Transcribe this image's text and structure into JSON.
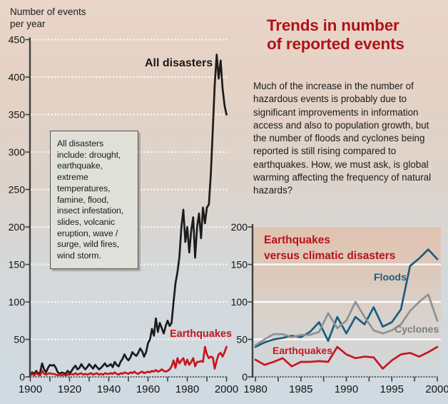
{
  "left_axis_title": {
    "line1": "Number of events",
    "line2": "per year"
  },
  "title": {
    "line1": "Trends in number",
    "line2": "of reported events",
    "color": "#b01218"
  },
  "paragraph": {
    "text": "Much of the increase in the number of hazardous events is probably due to significant improvements in information access and also to population growth, but the number of floods and cyclones being reported is still rising compared to earthquakes. How, we must ask, is global warming affecting the frequency of natural hazards?"
  },
  "note_box": {
    "text": "All disasters include: drought, earthquake, extreme temperatures, famine, flood, insect infestation, slides, volcanic eruption, wave / surge, wild fires, wind storm."
  },
  "appearance": {
    "background_top": "#e9d6c8",
    "background_bottom": "#cfdae2",
    "gridline_color": "#ffffff",
    "axis_color": "#3f3f3f",
    "panel_gradient": [
      "#e1c3b1",
      "#ddc8ba",
      "#d9d2cb",
      "#d0d8dc"
    ]
  },
  "chart_data": [
    {
      "type": "line",
      "name": "all-disasters-vs-earthquakes-1900-2000",
      "ylabel": "Number of events per year",
      "x_range": [
        1900,
        2000
      ],
      "y_range": [
        0,
        450
      ],
      "x_ticks_labeled": [
        1900,
        1920,
        1940,
        1960,
        1980,
        2000
      ],
      "x_tick_minor_step": 10,
      "y_ticks_labeled": [
        0,
        50,
        100,
        150,
        200,
        250,
        300,
        350,
        400,
        450
      ],
      "gridlines_y": [
        50,
        100,
        150,
        200,
        250,
        300,
        350,
        400,
        450
      ],
      "legend_position": "inline-labels",
      "series": [
        {
          "name": "All disasters",
          "color": "#1c1c1c",
          "x_start": 1900,
          "x_step": 1,
          "values": [
            3,
            6,
            4,
            8,
            4,
            6,
            18,
            10,
            6,
            12,
            16,
            15,
            16,
            12,
            6,
            4,
            6,
            5,
            4,
            8,
            5,
            8,
            12,
            15,
            10,
            12,
            17,
            13,
            10,
            13,
            17,
            14,
            11,
            16,
            13,
            10,
            12,
            15,
            18,
            14,
            15,
            17,
            13,
            20,
            16,
            14,
            20,
            24,
            30,
            25,
            22,
            26,
            33,
            30,
            28,
            32,
            38,
            34,
            27,
            33,
            45,
            50,
            64,
            55,
            78,
            60,
            72,
            65,
            58,
            68,
            75,
            68,
            72,
            100,
            125,
            140,
            160,
            200,
            223,
            180,
            200,
            166,
            195,
            213,
            159,
            200,
            218,
            185,
            226,
            205,
            226,
            230,
            270,
            330,
            390,
            430,
            398,
            422,
            385,
            362,
            350
          ]
        },
        {
          "name": "Earthquakes",
          "color": "#c8161d",
          "x_start": 1900,
          "x_step": 1,
          "values": [
            2,
            4,
            2,
            5,
            3,
            2,
            8,
            4,
            3,
            4,
            5,
            4,
            4,
            3,
            2,
            3,
            2,
            3,
            2,
            3,
            3,
            4,
            3,
            5,
            3,
            4,
            5,
            3,
            4,
            3,
            4,
            5,
            3,
            4,
            5,
            3,
            4,
            3,
            5,
            4,
            4,
            5,
            4,
            6,
            4,
            3,
            5,
            4,
            6,
            5,
            4,
            6,
            5,
            7,
            5,
            4,
            6,
            7,
            5,
            6,
            7,
            6,
            8,
            7,
            9,
            7,
            8,
            10,
            8,
            7,
            8,
            10,
            14,
            22,
            12,
            25,
            18,
            22,
            25,
            16,
            23,
            16,
            20,
            25,
            14,
            20,
            20,
            21,
            20,
            40,
            30,
            25,
            27,
            26,
            11,
            22,
            30,
            32,
            27,
            33,
            40
          ]
        }
      ]
    },
    {
      "type": "line",
      "name": "earthquakes-versus-climatic-disasters-1980-2000",
      "title": "Earthquakes versus climatic disasters",
      "title_lines": [
        "Earthquakes",
        "versus climatic disasters"
      ],
      "x_range": [
        1980,
        2000
      ],
      "y_range": [
        0,
        200
      ],
      "x_ticks_labeled": [
        1980,
        1985,
        1990,
        1995,
        2000
      ],
      "x_tick_minor_step": 2.5,
      "y_ticks_labeled": [
        0,
        50,
        100,
        150,
        200
      ],
      "gridlines_y": [
        50,
        100,
        150
      ],
      "legend_position": "inline-labels",
      "series": [
        {
          "name": "Floods",
          "color": "#1a5d7f",
          "x_start": 1980,
          "x_step": 1,
          "values": [
            40,
            46,
            50,
            52,
            55,
            53,
            60,
            73,
            48,
            80,
            58,
            80,
            70,
            93,
            67,
            73,
            90,
            148,
            158,
            170,
            157
          ]
        },
        {
          "name": "Cyclones",
          "color": "#8e9091",
          "x_start": 1980,
          "x_step": 1,
          "values": [
            42,
            50,
            57,
            57,
            53,
            56,
            56,
            60,
            85,
            65,
            75,
            100,
            80,
            62,
            58,
            62,
            70,
            88,
            100,
            110,
            75
          ]
        },
        {
          "name": "Earthquakes",
          "color": "#c8161d",
          "x_start": 1980,
          "x_step": 1,
          "values": [
            23,
            16,
            20,
            25,
            14,
            20,
            20,
            21,
            20,
            40,
            30,
            25,
            27,
            26,
            11,
            22,
            30,
            32,
            27,
            33,
            40
          ]
        }
      ]
    }
  ]
}
